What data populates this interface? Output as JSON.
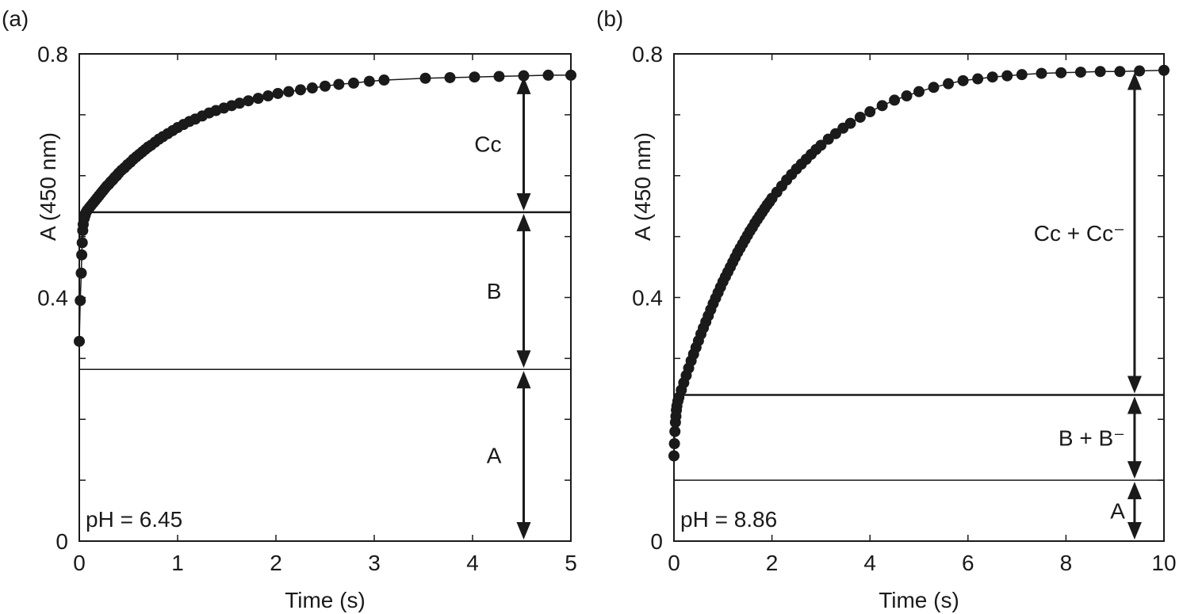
{
  "chart_data": [
    {
      "type": "scatter",
      "panel_label": "(a)",
      "xlabel": "Time (s)",
      "ylabel": "A (450 nm)",
      "xlim": [
        0,
        5
      ],
      "ylim": [
        0,
        0.8
      ],
      "xticks": [
        0,
        1,
        2,
        3,
        4,
        5
      ],
      "xtick_labels": [
        "0",
        "1",
        "2",
        "3",
        "4",
        "5"
      ],
      "yticks": [
        0,
        0.1,
        0.2,
        0.3,
        0.4,
        0.5,
        0.6,
        0.7,
        0.8
      ],
      "ytick_labels": [
        "0",
        "",
        "",
        "",
        "0.4",
        "",
        "",
        "",
        "0.8"
      ],
      "annotation": "pH = 6.45",
      "levels": [
        0.282,
        0.54
      ],
      "arrow_x": 4.52,
      "top_level": 0.765,
      "regions": [
        {
          "label": "Cc",
          "y_from": 0.54,
          "y_to": 0.765
        },
        {
          "label": "B",
          "y_from": 0.282,
          "y_to": 0.54
        },
        {
          "label": "A",
          "y_from": 0.0,
          "y_to": 0.282
        }
      ],
      "series": [
        {
          "points": [
            [
              0.0,
              0.328
            ],
            [
              0.01,
              0.395
            ],
            [
              0.02,
              0.44
            ],
            [
              0.025,
              0.47
            ],
            [
              0.03,
              0.49
            ],
            [
              0.035,
              0.51
            ],
            [
              0.04,
              0.52
            ],
            [
              0.05,
              0.53
            ],
            [
              0.06,
              0.535
            ],
            [
              0.07,
              0.54
            ],
            [
              0.08,
              0.543
            ],
            [
              0.1,
              0.547
            ],
            [
              0.12,
              0.551
            ],
            [
              0.14,
              0.555
            ],
            [
              0.16,
              0.559
            ],
            [
              0.18,
              0.563
            ],
            [
              0.2,
              0.567
            ],
            [
              0.22,
              0.571
            ],
            [
              0.24,
              0.575
            ],
            [
              0.26,
              0.579
            ],
            [
              0.28,
              0.583
            ],
            [
              0.3,
              0.586
            ],
            [
              0.32,
              0.59
            ],
            [
              0.34,
              0.593
            ],
            [
              0.36,
              0.597
            ],
            [
              0.38,
              0.6
            ],
            [
              0.4,
              0.604
            ],
            [
              0.43,
              0.609
            ],
            [
              0.46,
              0.613
            ],
            [
              0.49,
              0.618
            ],
            [
              0.52,
              0.622
            ],
            [
              0.55,
              0.627
            ],
            [
              0.58,
              0.631
            ],
            [
              0.61,
              0.635
            ],
            [
              0.64,
              0.639
            ],
            [
              0.67,
              0.643
            ],
            [
              0.7,
              0.647
            ],
            [
              0.73,
              0.65
            ],
            [
              0.77,
              0.655
            ],
            [
              0.81,
              0.66
            ],
            [
              0.85,
              0.664
            ],
            [
              0.9,
              0.669
            ],
            [
              0.95,
              0.674
            ],
            [
              1.0,
              0.679
            ],
            [
              1.06,
              0.684
            ],
            [
              1.12,
              0.689
            ],
            [
              1.18,
              0.693
            ],
            [
              1.25,
              0.698
            ],
            [
              1.32,
              0.703
            ],
            [
              1.39,
              0.707
            ],
            [
              1.47,
              0.711
            ],
            [
              1.55,
              0.715
            ],
            [
              1.63,
              0.719
            ],
            [
              1.72,
              0.723
            ],
            [
              1.82,
              0.727
            ],
            [
              1.92,
              0.731
            ],
            [
              2.02,
              0.735
            ],
            [
              2.13,
              0.738
            ],
            [
              2.25,
              0.741
            ],
            [
              2.37,
              0.744
            ],
            [
              2.5,
              0.747
            ],
            [
              2.64,
              0.75
            ],
            [
              2.79,
              0.752
            ],
            [
              2.95,
              0.755
            ],
            [
              3.1,
              0.757
            ],
            [
              3.52,
              0.76
            ],
            [
              3.77,
              0.761
            ],
            [
              4.02,
              0.762
            ],
            [
              4.27,
              0.763
            ],
            [
              4.52,
              0.764
            ],
            [
              4.77,
              0.765
            ],
            [
              5.0,
              0.765
            ]
          ]
        }
      ]
    },
    {
      "type": "scatter",
      "panel_label": "(b)",
      "xlabel": "Time (s)",
      "ylabel": "A (450 nm)",
      "xlim": [
        0,
        10
      ],
      "ylim": [
        0,
        0.8
      ],
      "xticks": [
        0,
        2,
        4,
        6,
        8,
        10
      ],
      "xtick_labels": [
        "0",
        "2",
        "4",
        "6",
        "8",
        "10"
      ],
      "yticks": [
        0,
        0.1,
        0.2,
        0.3,
        0.4,
        0.5,
        0.6,
        0.7,
        0.8
      ],
      "ytick_labels": [
        "0",
        "",
        "",
        "",
        "0.4",
        "",
        "",
        "",
        "0.8"
      ],
      "annotation": "pH = 8.86",
      "levels": [
        0.1,
        0.24
      ],
      "arrow_x": 9.4,
      "top_level": 0.772,
      "regions": [
        {
          "label": "Cc + Cc⁻",
          "y_from": 0.24,
          "y_to": 0.772
        },
        {
          "label": "B + B⁻",
          "y_from": 0.1,
          "y_to": 0.24
        },
        {
          "label": "A",
          "y_from": 0.0,
          "y_to": 0.1
        }
      ],
      "series": [
        {
          "points": [
            [
              0.0,
              0.14
            ],
            [
              0.01,
              0.16
            ],
            [
              0.02,
              0.18
            ],
            [
              0.03,
              0.195
            ],
            [
              0.04,
              0.205
            ],
            [
              0.05,
              0.215
            ],
            [
              0.06,
              0.222
            ],
            [
              0.08,
              0.23
            ],
            [
              0.1,
              0.236
            ],
            [
              0.15,
              0.248
            ],
            [
              0.2,
              0.26
            ],
            [
              0.25,
              0.272
            ],
            [
              0.3,
              0.284
            ],
            [
              0.35,
              0.296
            ],
            [
              0.4,
              0.307
            ],
            [
              0.45,
              0.318
            ],
            [
              0.5,
              0.329
            ],
            [
              0.55,
              0.34
            ],
            [
              0.6,
              0.35
            ],
            [
              0.65,
              0.36
            ],
            [
              0.7,
              0.37
            ],
            [
              0.75,
              0.38
            ],
            [
              0.8,
              0.39
            ],
            [
              0.85,
              0.399
            ],
            [
              0.9,
              0.408
            ],
            [
              0.95,
              0.417
            ],
            [
              1.0,
              0.426
            ],
            [
              1.05,
              0.434
            ],
            [
              1.1,
              0.442
            ],
            [
              1.15,
              0.45
            ],
            [
              1.2,
              0.458
            ],
            [
              1.25,
              0.466
            ],
            [
              1.3,
              0.474
            ],
            [
              1.35,
              0.481
            ],
            [
              1.4,
              0.488
            ],
            [
              1.45,
              0.495
            ],
            [
              1.5,
              0.502
            ],
            [
              1.55,
              0.509
            ],
            [
              1.6,
              0.515
            ],
            [
              1.65,
              0.522
            ],
            [
              1.7,
              0.528
            ],
            [
              1.75,
              0.534
            ],
            [
              1.8,
              0.54
            ],
            [
              1.85,
              0.546
            ],
            [
              1.9,
              0.552
            ],
            [
              1.95,
              0.557
            ],
            [
              2.0,
              0.563
            ],
            [
              2.1,
              0.573
            ],
            [
              2.2,
              0.583
            ],
            [
              2.3,
              0.593
            ],
            [
              2.4,
              0.602
            ],
            [
              2.5,
              0.611
            ],
            [
              2.6,
              0.619
            ],
            [
              2.7,
              0.627
            ],
            [
              2.8,
              0.635
            ],
            [
              2.9,
              0.643
            ],
            [
              3.0,
              0.65
            ],
            [
              3.15,
              0.66
            ],
            [
              3.3,
              0.669
            ],
            [
              3.45,
              0.678
            ],
            [
              3.6,
              0.686
            ],
            [
              3.8,
              0.696
            ],
            [
              4.0,
              0.705
            ],
            [
              4.25,
              0.715
            ],
            [
              4.5,
              0.724
            ],
            [
              4.75,
              0.731
            ],
            [
              5.0,
              0.738
            ],
            [
              5.3,
              0.745
            ],
            [
              5.6,
              0.751
            ],
            [
              5.9,
              0.756
            ],
            [
              6.2,
              0.759
            ],
            [
              6.5,
              0.762
            ],
            [
              6.8,
              0.764
            ],
            [
              7.1,
              0.766
            ],
            [
              7.5,
              0.768
            ],
            [
              7.9,
              0.769
            ],
            [
              8.3,
              0.77
            ],
            [
              8.7,
              0.771
            ],
            [
              9.1,
              0.771
            ],
            [
              9.5,
              0.772
            ],
            [
              10.0,
              0.773
            ]
          ]
        }
      ]
    }
  ]
}
